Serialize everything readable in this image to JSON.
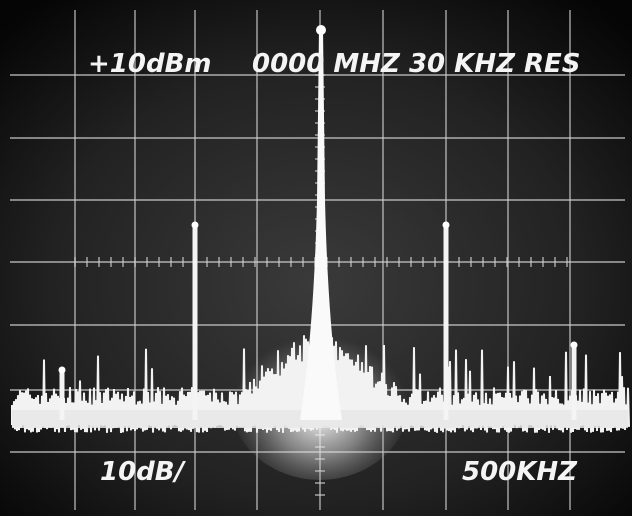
{
  "screen": {
    "top_left": "+10dBm",
    "top_right": "0000 MHZ 30 KHZ RES",
    "bottom_left": "10dB/",
    "bottom_right": "500KHZ"
  }
}
